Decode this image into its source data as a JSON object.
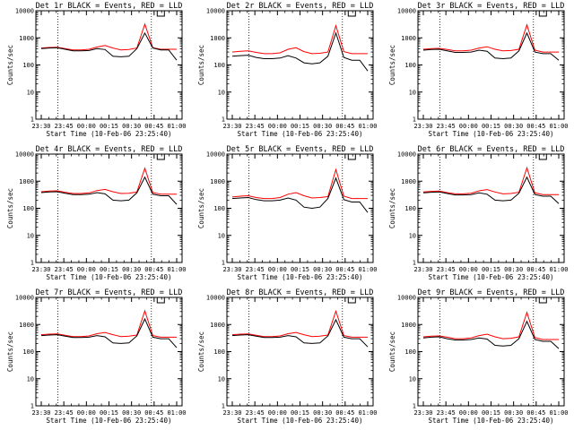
{
  "chart_data": [
    {
      "type": "line",
      "title": "Det 1r BLACK = Events, RED = LLD",
      "xlabel": "Start Time (10-Feb-06 23:25:40)",
      "ylabel": "Counts/sec",
      "ylim": [
        1,
        10000
      ],
      "yscale": "log",
      "xticks": [
        "23:30",
        "23:45",
        "00:00",
        "00:15",
        "00:30",
        "00:45",
        "01:00"
      ],
      "yticks": [
        "1",
        "10",
        "100",
        "1000",
        "10000"
      ],
      "series": [
        {
          "color": "#000000",
          "values": [
            400,
            420,
            430,
            380,
            330,
            330,
            340,
            400,
            370,
            210,
            200,
            210,
            400,
            1500,
            420,
            360,
            360,
            150
          ]
        },
        {
          "color": "#ff0000",
          "values": [
            420,
            440,
            450,
            400,
            360,
            360,
            380,
            460,
            520,
            420,
            360,
            370,
            420,
            3200,
            430,
            380,
            380,
            380
          ]
        }
      ]
    },
    {
      "type": "line",
      "title": "Det 2r BLACK = Events, RED = LLD",
      "xlabel": "Start Time (10-Feb-06 23:25:40)",
      "ylabel": "Counts/sec",
      "ylim": [
        1,
        10000
      ],
      "yscale": "log",
      "xticks": [
        "23:30",
        "23:45",
        "00:00",
        "00:15",
        "00:30",
        "00:45",
        "01:00"
      ],
      "yticks": [
        "1",
        "10",
        "100",
        "1000",
        "10000"
      ],
      "series": [
        {
          "color": "#000000",
          "values": [
            210,
            220,
            230,
            190,
            170,
            170,
            180,
            220,
            180,
            120,
            110,
            120,
            210,
            1500,
            190,
            150,
            150,
            60
          ]
        },
        {
          "color": "#ff0000",
          "values": [
            300,
            320,
            330,
            290,
            260,
            260,
            280,
            380,
            430,
            310,
            260,
            270,
            300,
            2800,
            310,
            260,
            260,
            260
          ]
        }
      ]
    },
    {
      "type": "line",
      "title": "Det 3r BLACK = Events, RED = LLD",
      "xlabel": "Start Time (10-Feb-06 23:25:40)",
      "ylabel": "Counts/sec",
      "ylim": [
        1,
        10000
      ],
      "yscale": "log",
      "xticks": [
        "23:30",
        "23:45",
        "00:00",
        "00:15",
        "00:30",
        "00:45",
        "01:00"
      ],
      "yticks": [
        "1",
        "10",
        "100",
        "1000",
        "10000"
      ],
      "series": [
        {
          "color": "#000000",
          "values": [
            350,
            370,
            380,
            330,
            290,
            290,
            300,
            350,
            320,
            180,
            170,
            180,
            330,
            1500,
            300,
            260,
            260,
            150
          ]
        },
        {
          "color": "#ff0000",
          "values": [
            380,
            400,
            410,
            370,
            330,
            330,
            350,
            420,
            470,
            380,
            330,
            340,
            380,
            3000,
            350,
            300,
            300,
            300
          ]
        }
      ]
    },
    {
      "type": "line",
      "title": "Det 4r BLACK = Events, RED = LLD",
      "xlabel": "Start Time (10-Feb-06 23:25:40)",
      "ylabel": "Counts/sec",
      "ylim": [
        1,
        10000
      ],
      "yscale": "log",
      "xticks": [
        "23:30",
        "23:45",
        "00:00",
        "00:15",
        "00:30",
        "00:45",
        "01:00"
      ],
      "yticks": [
        "1",
        "10",
        "100",
        "1000",
        "10000"
      ],
      "series": [
        {
          "color": "#000000",
          "values": [
            380,
            400,
            410,
            360,
            320,
            320,
            330,
            380,
            340,
            200,
            190,
            200,
            370,
            1400,
            330,
            290,
            290,
            140
          ]
        },
        {
          "color": "#ff0000",
          "values": [
            410,
            430,
            440,
            390,
            350,
            350,
            370,
            450,
            500,
            410,
            350,
            360,
            400,
            3000,
            380,
            330,
            330,
            330
          ]
        }
      ]
    },
    {
      "type": "line",
      "title": "Det 5r BLACK = Events, RED = LLD",
      "xlabel": "Start Time (10-Feb-06 23:25:40)",
      "ylabel": "Counts/sec",
      "ylim": [
        1,
        10000
      ],
      "yscale": "log",
      "xticks": [
        "23:30",
        "23:45",
        "00:00",
        "00:15",
        "00:30",
        "00:45",
        "01:00"
      ],
      "yticks": [
        "1",
        "10",
        "100",
        "1000",
        "10000"
      ],
      "series": [
        {
          "color": "#000000",
          "values": [
            230,
            240,
            250,
            210,
            190,
            190,
            200,
            240,
            200,
            110,
            100,
            110,
            230,
            1300,
            210,
            170,
            170,
            70
          ]
        },
        {
          "color": "#ff0000",
          "values": [
            260,
            280,
            290,
            250,
            230,
            230,
            250,
            330,
            380,
            290,
            240,
            250,
            270,
            2700,
            280,
            230,
            230,
            230
          ]
        }
      ]
    },
    {
      "type": "line",
      "title": "Det 6r BLACK = Events, RED = LLD",
      "xlabel": "Start Time (10-Feb-06 23:25:40)",
      "ylabel": "Counts/sec",
      "ylim": [
        1,
        10000
      ],
      "yscale": "log",
      "xticks": [
        "23:30",
        "23:45",
        "00:00",
        "00:15",
        "00:30",
        "00:45",
        "01:00"
      ],
      "yticks": [
        "1",
        "10",
        "100",
        "1000",
        "10000"
      ],
      "series": [
        {
          "color": "#000000",
          "values": [
            370,
            390,
            400,
            350,
            310,
            310,
            320,
            370,
            330,
            200,
            190,
            200,
            360,
            1400,
            320,
            280,
            280,
            150
          ]
        },
        {
          "color": "#ff0000",
          "values": [
            400,
            420,
            430,
            380,
            340,
            340,
            360,
            440,
            490,
            400,
            340,
            350,
            390,
            3100,
            370,
            320,
            320,
            320
          ]
        }
      ]
    },
    {
      "type": "line",
      "title": "Det 7r BLACK = Events, RED = LLD",
      "xlabel": "Start Time (10-Feb-06 23:25:40)",
      "ylabel": "Counts/sec",
      "ylim": [
        1,
        10000
      ],
      "yscale": "log",
      "xticks": [
        "23:30",
        "23:45",
        "00:00",
        "00:15",
        "00:30",
        "00:45",
        "01:00"
      ],
      "yticks": [
        "1",
        "10",
        "100",
        "1000",
        "10000"
      ],
      "series": [
        {
          "color": "#000000",
          "values": [
            390,
            410,
            420,
            370,
            330,
            330,
            340,
            390,
            350,
            210,
            200,
            210,
            380,
            1600,
            340,
            300,
            300,
            140
          ]
        },
        {
          "color": "#ff0000",
          "values": [
            420,
            440,
            450,
            400,
            360,
            360,
            380,
            460,
            510,
            420,
            360,
            370,
            410,
            3200,
            390,
            340,
            340,
            340
          ]
        }
      ]
    },
    {
      "type": "line",
      "title": "Det 8r BLACK = Events, RED = LLD",
      "xlabel": "Start Time (10-Feb-06 23:25:40)",
      "ylabel": "Counts/sec",
      "ylim": [
        1,
        10000
      ],
      "yscale": "log",
      "xticks": [
        "23:30",
        "23:45",
        "00:00",
        "00:15",
        "00:30",
        "00:45",
        "01:00"
      ],
      "yticks": [
        "1",
        "10",
        "100",
        "1000",
        "10000"
      ],
      "series": [
        {
          "color": "#000000",
          "values": [
            390,
            410,
            420,
            370,
            330,
            330,
            340,
            390,
            350,
            210,
            200,
            210,
            380,
            1500,
            340,
            300,
            300,
            150
          ]
        },
        {
          "color": "#ff0000",
          "values": [
            420,
            440,
            450,
            400,
            360,
            360,
            380,
            460,
            510,
            420,
            360,
            370,
            410,
            3100,
            390,
            340,
            340,
            340
          ]
        }
      ]
    },
    {
      "type": "line",
      "title": "Det 9r BLACK = Events, RED = LLD",
      "xlabel": "Start Time (10-Feb-06 23:25:40)",
      "ylabel": "Counts/sec",
      "ylim": [
        1,
        10000
      ],
      "yscale": "log",
      "xticks": [
        "23:30",
        "23:45",
        "00:00",
        "00:15",
        "00:30",
        "00:45",
        "01:00"
      ],
      "yticks": [
        "1",
        "10",
        "100",
        "1000",
        "10000"
      ],
      "series": [
        {
          "color": "#000000",
          "values": [
            320,
            340,
            350,
            300,
            270,
            270,
            280,
            320,
            290,
            170,
            160,
            170,
            300,
            1300,
            280,
            240,
            240,
            130
          ]
        },
        {
          "color": "#ff0000",
          "values": [
            350,
            370,
            380,
            340,
            300,
            300,
            320,
            390,
            440,
            350,
            300,
            310,
            350,
            2800,
            330,
            280,
            280,
            280
          ]
        }
      ]
    }
  ]
}
